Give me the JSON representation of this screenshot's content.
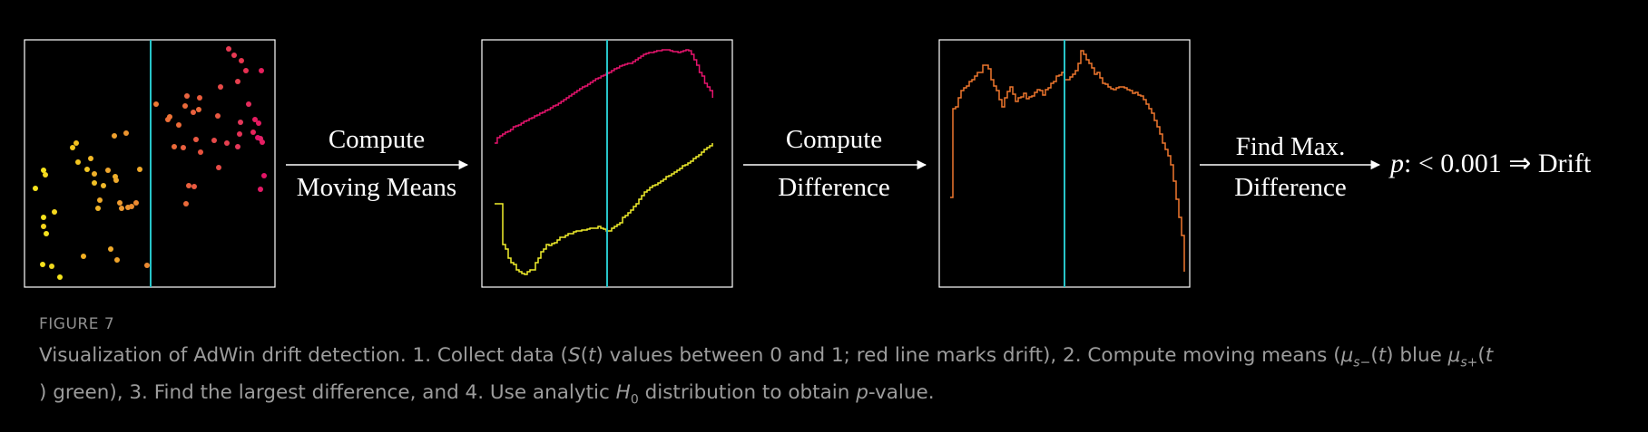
{
  "figure": {
    "arrow_labels": {
      "step1_top": "Compute",
      "step1_bottom": "Moving Means",
      "step2_top": "Compute",
      "step2_bottom": "Difference",
      "step3_top": "Find Max.",
      "step3_bottom": "Difference"
    },
    "result": {
      "p": "p",
      "rest": ": < 0.001 ⇒ Drift"
    },
    "colors": {
      "drift_line": "#27c4c8",
      "panel_border": "#ffffff",
      "mean_before": "#f2ef2c",
      "mean_after": "#e8146e",
      "difference": "#f0772e",
      "text": "#ffffff"
    }
  },
  "caption": {
    "label": "FIGURE 7",
    "line1_a": "Visualization of AdWin drift detection. 1. Collect data (",
    "S": "S",
    "t1": "t",
    "line1_b": ") values between 0 and 1; red line marks drift), 2. Compute moving means (",
    "mu": "μ",
    "sub_minus": "s−",
    "t2": "t",
    "blue_word": ") blue ",
    "sub_plus": "s+",
    "t3": "t",
    "line2_a": ") green), 3. Find the largest difference, and 4. Use analytic ",
    "H": "H",
    "H_sub": "0",
    "line2_b": " distribution to obtain ",
    "pval_p": "p",
    "line2_c": "-value."
  }
}
